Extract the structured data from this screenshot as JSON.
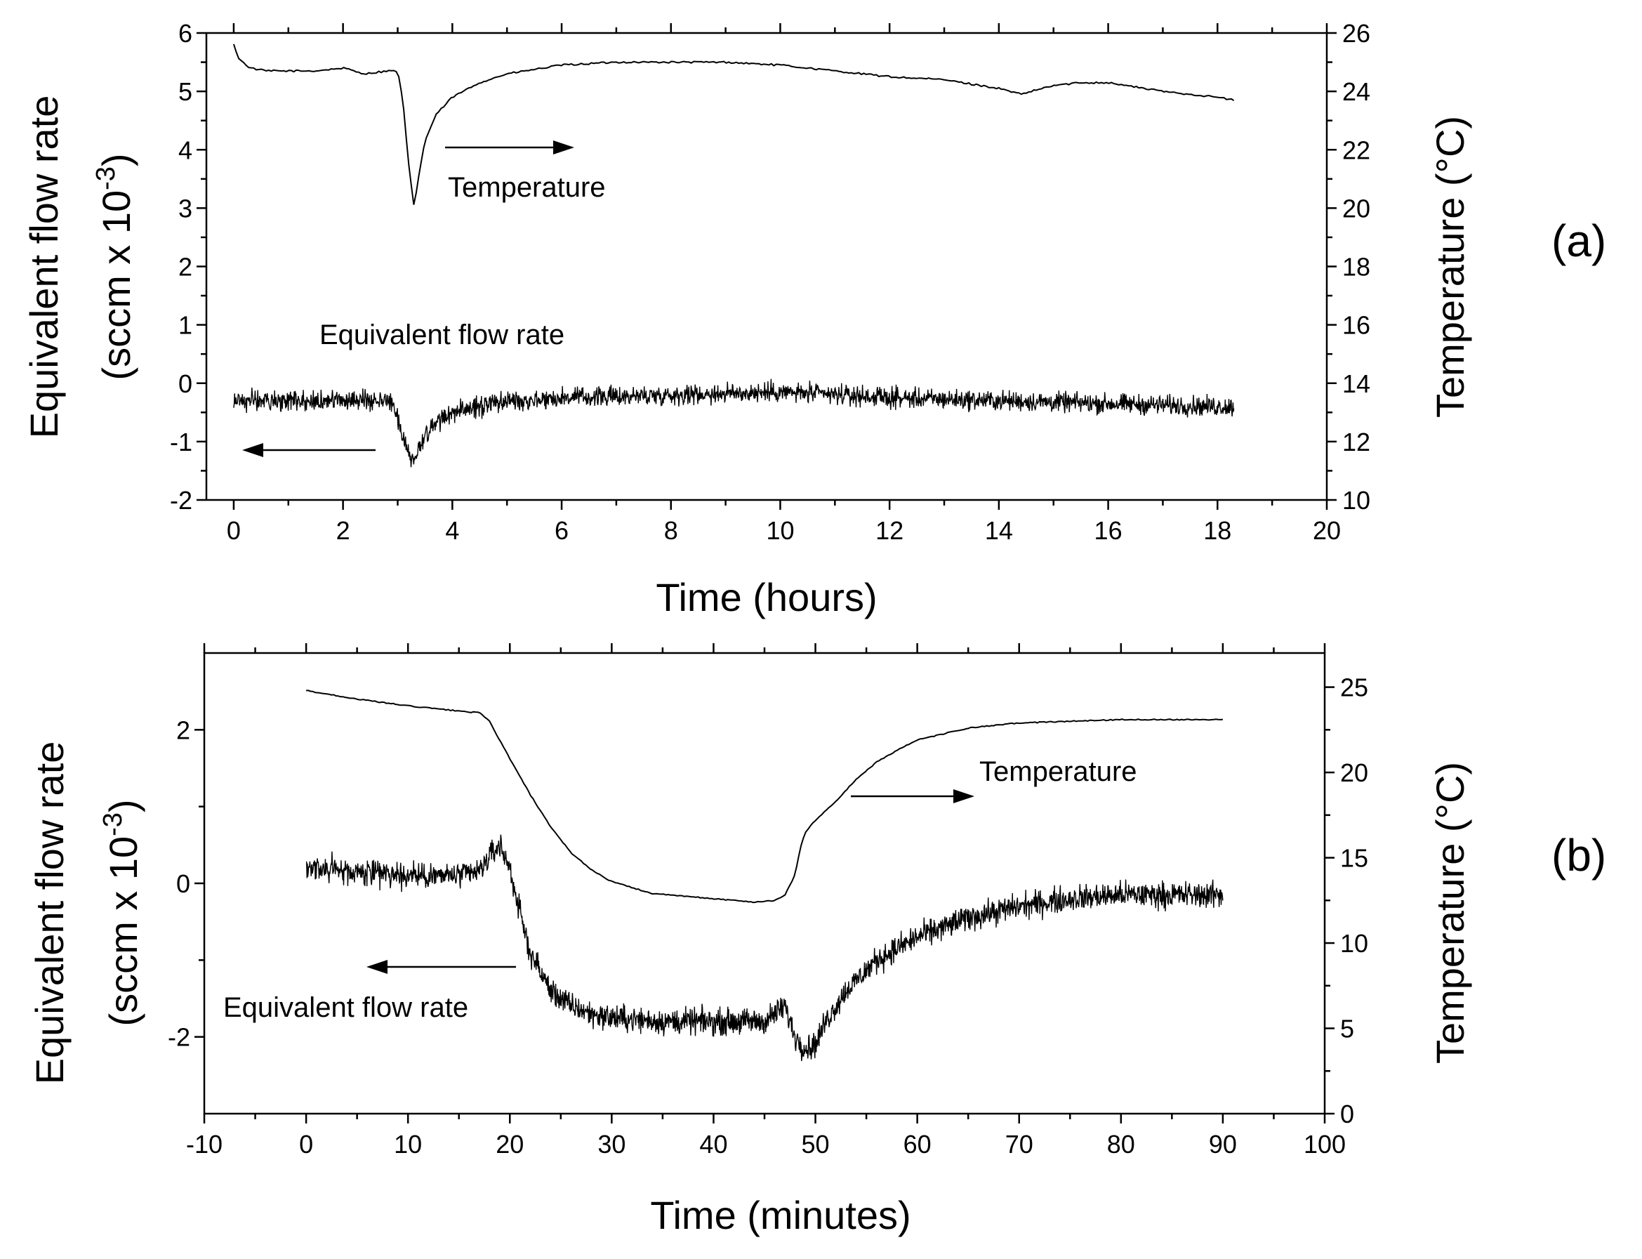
{
  "chart_data": [
    {
      "type": "line",
      "panel_label": "(a)",
      "xlabel": "Time (hours)",
      "ylabel_left_line1": "Equivalent flow rate",
      "ylabel_left_line2": "(sccm x 10",
      "ylabel_left_sup": "-3",
      "ylabel_left_close": ")",
      "ylabel_right": "Temperature (°C)",
      "xlim": [
        -0.5,
        20
      ],
      "ylim_left": [
        -2,
        6
      ],
      "ylim_right": [
        10,
        26
      ],
      "xticks": [
        0,
        2,
        4,
        6,
        8,
        10,
        12,
        14,
        16,
        18,
        20
      ],
      "xtick_labels": [
        "0",
        "2",
        "4",
        "6",
        "8",
        "10",
        "12",
        "14",
        "16",
        "18",
        "20"
      ],
      "yticks_left": [
        -2,
        -1,
        0,
        1,
        2,
        3,
        4,
        5,
        6
      ],
      "ytick_labels_left": [
        "-2",
        "-1",
        "0",
        "1",
        "2",
        "3",
        "4",
        "5",
        "6"
      ],
      "yticks_right": [
        10,
        12,
        14,
        16,
        18,
        20,
        22,
        24,
        26
      ],
      "ytick_labels_right": [
        "10",
        "12",
        "14",
        "16",
        "18",
        "20",
        "22",
        "24",
        "26"
      ],
      "annotations": {
        "temperature": "Temperature",
        "flow": "Equivalent flow rate"
      },
      "series": [
        {
          "name": "Temperature",
          "axis": "right",
          "x": [
            0,
            0.1,
            0.3,
            0.6,
            1,
            1.5,
            2,
            2.4,
            2.8,
            3.0,
            3.1,
            3.2,
            3.3,
            3.4,
            3.5,
            3.7,
            4.0,
            4.5,
            5,
            6,
            7,
            8,
            9,
            10,
            11,
            12,
            13,
            14,
            14.4,
            15,
            15.5,
            16,
            17,
            18,
            18.3
          ],
          "y": [
            25.6,
            25.1,
            24.8,
            24.7,
            24.7,
            24.7,
            24.8,
            24.6,
            24.7,
            24.7,
            23.6,
            21.5,
            20.0,
            21.3,
            22.3,
            23.2,
            23.8,
            24.3,
            24.6,
            24.9,
            25.0,
            25.0,
            25.0,
            24.9,
            24.7,
            24.5,
            24.4,
            24.1,
            23.9,
            24.2,
            24.3,
            24.3,
            24.0,
            23.8,
            23.7
          ]
        },
        {
          "name": "Equivalent flow rate",
          "axis": "left",
          "noise_amplitude": 0.25,
          "x": [
            0,
            1,
            2,
            2.9,
            3.1,
            3.25,
            3.35,
            3.5,
            3.8,
            4.2,
            5,
            6,
            8,
            10,
            12,
            14,
            16,
            18,
            18.3
          ],
          "y": [
            -0.3,
            -0.3,
            -0.3,
            -0.3,
            -0.9,
            -1.3,
            -1.2,
            -0.9,
            -0.6,
            -0.45,
            -0.3,
            -0.25,
            -0.2,
            -0.15,
            -0.25,
            -0.3,
            -0.35,
            -0.4,
            -0.4
          ]
        }
      ]
    },
    {
      "type": "line",
      "panel_label": "(b)",
      "xlabel": "Time (minutes)",
      "ylabel_left_line1": "Equivalent  flow rate",
      "ylabel_left_line2": "(sccm x 10",
      "ylabel_left_sup": "-3",
      "ylabel_left_close": ")",
      "ylabel_right": "Temperature (°C)",
      "xlim": [
        -10,
        100
      ],
      "ylim_left": [
        -3,
        3
      ],
      "ylim_right": [
        0,
        27
      ],
      "xticks": [
        -10,
        0,
        10,
        20,
        30,
        40,
        50,
        60,
        70,
        80,
        90,
        100
      ],
      "xtick_labels": [
        "-10",
        "0",
        "10",
        "20",
        "30",
        "40",
        "50",
        "60",
        "70",
        "80",
        "90",
        "100"
      ],
      "yticks_left": [
        -2,
        0,
        2
      ],
      "ytick_labels_left": [
        "-2",
        "0",
        "2"
      ],
      "yticks_right": [
        0,
        5,
        10,
        15,
        20,
        25
      ],
      "ytick_labels_right": [
        "0",
        "5",
        "10",
        "15",
        "20",
        "25"
      ],
      "annotations": {
        "temperature": "Temperature",
        "flow": "Equivalent flow rate"
      },
      "series": [
        {
          "name": "Temperature",
          "axis": "right",
          "x": [
            0,
            5,
            10,
            15,
            17,
            18,
            20,
            22,
            24,
            26,
            28,
            30,
            34,
            38,
            42,
            44,
            46,
            47,
            48,
            48.5,
            49,
            50,
            52,
            54,
            56,
            58,
            60,
            65,
            70,
            75,
            80,
            85,
            90
          ],
          "y": [
            24.8,
            24.3,
            23.9,
            23.6,
            23.5,
            23.0,
            20.8,
            18.7,
            16.8,
            15.3,
            14.3,
            13.6,
            12.9,
            12.7,
            12.5,
            12.4,
            12.5,
            12.8,
            14.0,
            15.5,
            16.5,
            17.2,
            18.3,
            19.6,
            20.6,
            21.3,
            21.9,
            22.6,
            22.9,
            23.0,
            23.1,
            23.1,
            23.1
          ]
        },
        {
          "name": "Equivalent flow rate",
          "axis": "left",
          "noise_amplitude": 0.25,
          "x": [
            0,
            5,
            10,
            15,
            17,
            18,
            19,
            20,
            21,
            22,
            24,
            26,
            28,
            30,
            35,
            40,
            45,
            47,
            48,
            49,
            50,
            51,
            53,
            56,
            60,
            65,
            70,
            75,
            80,
            85,
            90
          ],
          "y": [
            0.2,
            0.15,
            0.1,
            0.1,
            0.15,
            0.35,
            0.5,
            0.2,
            -0.4,
            -0.9,
            -1.4,
            -1.6,
            -1.7,
            -1.75,
            -1.8,
            -1.8,
            -1.8,
            -1.6,
            -2.0,
            -2.15,
            -2.1,
            -1.8,
            -1.4,
            -1.0,
            -0.7,
            -0.45,
            -0.3,
            -0.2,
            -0.15,
            -0.15,
            -0.15
          ]
        }
      ]
    }
  ]
}
